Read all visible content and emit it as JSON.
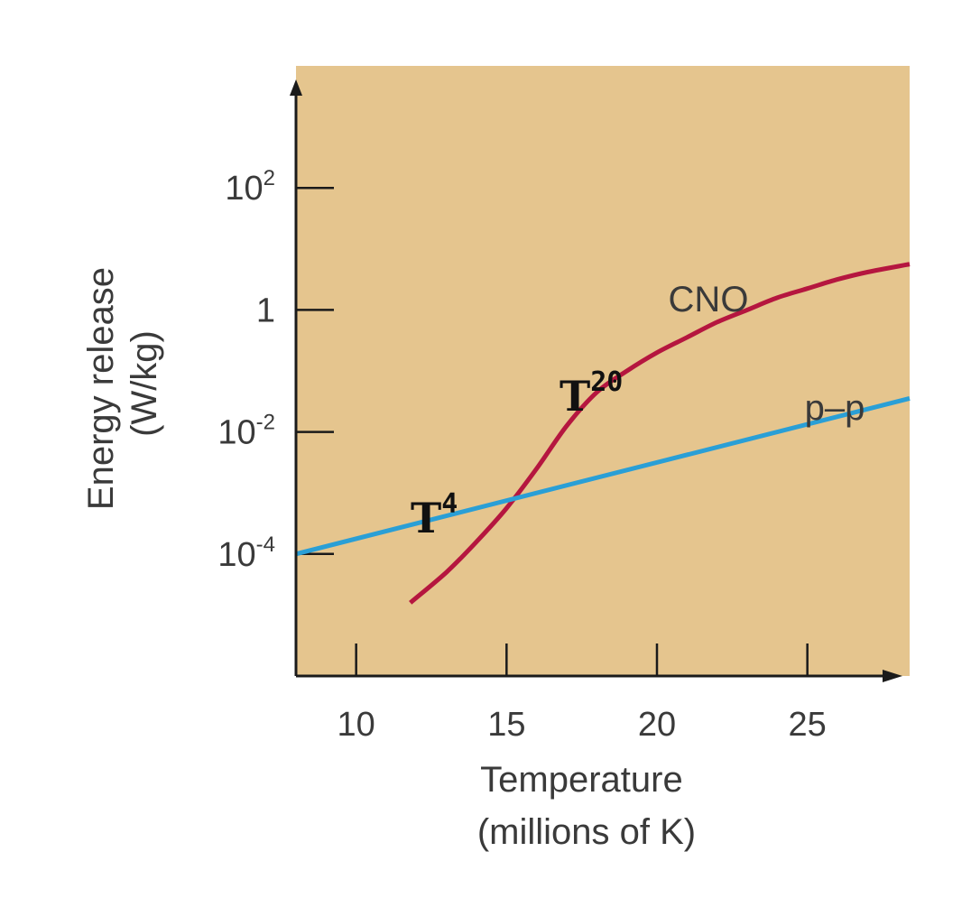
{
  "chart_data": {
    "type": "line",
    "xlabel": [
      "Temperature",
      "(millions of K)"
    ],
    "ylabel": [
      "Energy release",
      "(W/kg)"
    ],
    "xlim": [
      8,
      28.4
    ],
    "ylim_log10": [
      -6,
      4
    ],
    "y_scale": "log",
    "background_color": "#e5c58e",
    "x_ticks": [
      {
        "value": 10,
        "label": "10"
      },
      {
        "value": 15,
        "label": "15"
      },
      {
        "value": 20,
        "label": "20"
      },
      {
        "value": 25,
        "label": "25"
      }
    ],
    "y_ticks": [
      {
        "exp": 2,
        "base": "10",
        "sup": "2"
      },
      {
        "exp": 0,
        "base": "1",
        "sup": ""
      },
      {
        "exp": -2,
        "base": "10",
        "sup": "-2"
      },
      {
        "exp": -4,
        "base": "10",
        "sup": "-4"
      }
    ],
    "series": [
      {
        "name": "CNO",
        "color": "#b5163f",
        "x": [
          11.8,
          13,
          14,
          15,
          16,
          17,
          18,
          19,
          20,
          21,
          22,
          23,
          24,
          25,
          26,
          27,
          28.4
        ],
        "log10_y": [
          -4.8,
          -4.3,
          -3.8,
          -3.25,
          -2.6,
          -1.9,
          -1.35,
          -1.0,
          -0.7,
          -0.45,
          -0.2,
          0.0,
          0.2,
          0.35,
          0.5,
          0.62,
          0.75
        ]
      },
      {
        "name": "p–p",
        "color": "#2a9fd6",
        "x": [
          8,
          28.4
        ],
        "log10_y": [
          -4.0,
          -1.45
        ]
      }
    ],
    "annotations": [
      {
        "base": "T",
        "sup": "4"
      },
      {
        "base": "T",
        "sup": "20"
      }
    ]
  }
}
